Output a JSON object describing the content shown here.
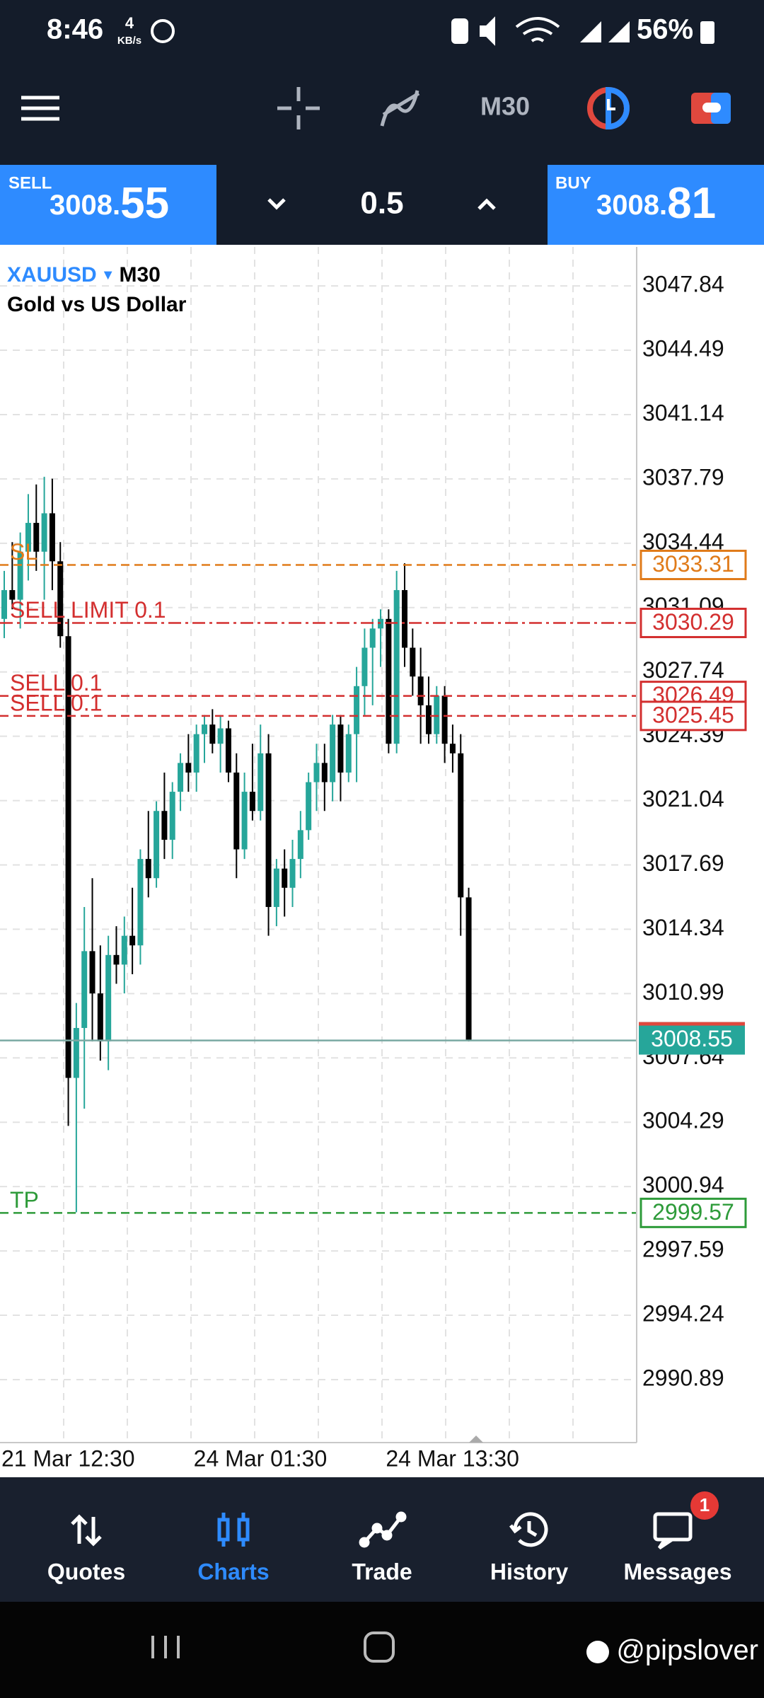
{
  "status_bar": {
    "time": "8:46",
    "net_speed": "4",
    "net_unit": "KB/s",
    "battery": "56%"
  },
  "toolbar": {
    "timeframe": "M30"
  },
  "trade_panel": {
    "sell_label": "SELL",
    "sell_price_main": "3008.",
    "sell_price_big": "55",
    "volume": "0.5",
    "buy_label": "BUY",
    "buy_price_main": "3008.",
    "buy_price_big": "81"
  },
  "chart_data": {
    "type": "candlestick",
    "symbol": "XAUUSD",
    "timeframe": "M30",
    "description": "Gold vs US Dollar",
    "categories": [
      "21 Mar 12:30",
      null,
      null,
      null,
      null,
      null,
      null,
      null,
      null,
      null,
      null,
      null,
      null,
      null,
      null,
      null,
      null,
      null,
      null,
      null,
      null,
      null,
      null,
      null,
      "24 Mar 01:30",
      null,
      null,
      null,
      null,
      null,
      null,
      null,
      null,
      null,
      null,
      null,
      null,
      null,
      null,
      null,
      null,
      null,
      null,
      null,
      null,
      null,
      null,
      null,
      "24 Mar 13:30",
      null,
      null,
      null,
      null,
      null,
      null,
      null,
      null,
      null,
      null
    ],
    "open": [
      3030.5,
      3032.0,
      3031.5,
      3034.0,
      3035.5,
      3034.0,
      3036.0,
      3033.5,
      3029.6,
      3006.6,
      3009.2,
      3013.2,
      3011.0,
      3008.5,
      3013.0,
      3012.5,
      3014.0,
      3013.5,
      3018.0,
      3017.0,
      3020.5,
      3019.0,
      3021.5,
      3023.0,
      3022.5,
      3024.5,
      3025.0,
      3024.0,
      3024.8,
      3022.5,
      3018.5,
      3021.5,
      3020.5,
      3023.5,
      3015.5,
      3017.5,
      3016.5,
      3018.0,
      3019.5,
      3022.0,
      3023.0,
      3022.0,
      3025.0,
      3022.5,
      3024.5,
      3027.0,
      3029.0,
      3030.0,
      3030.5,
      3024.0,
      3032.0,
      3029.0,
      3027.5,
      3026.0,
      3024.5,
      3026.5,
      3024.0,
      3023.5,
      3016.0
    ],
    "high": [
      3033.0,
      3034.5,
      3035.0,
      3037.0,
      3037.5,
      3037.9,
      3037.8,
      3034.5,
      3030.5,
      3010.5,
      3015.5,
      3017.0,
      3013.5,
      3014.0,
      3014.5,
      3015.0,
      3016.5,
      3018.5,
      3020.5,
      3021.0,
      3022.5,
      3022.0,
      3023.5,
      3024.5,
      3025.0,
      3025.5,
      3025.8,
      3025.5,
      3025.2,
      3023.5,
      3022.5,
      3024.0,
      3025.0,
      3024.5,
      3018.0,
      3018.5,
      3019.0,
      3020.5,
      3022.5,
      3024.0,
      3024.0,
      3025.5,
      3025.5,
      3025.0,
      3028.0,
      3030.0,
      3030.5,
      3031.0,
      3031.0,
      3033.0,
      3033.4,
      3030.0,
      3029.0,
      3027.5,
      3027.0,
      3027.0,
      3025.0,
      3024.5,
      3016.5
    ],
    "low": [
      3029.5,
      3031.0,
      3030.0,
      3032.5,
      3033.0,
      3031.5,
      3032.0,
      3029.0,
      3004.1,
      2999.6,
      3005.0,
      3008.5,
      3007.5,
      3007.0,
      3011.5,
      3011.0,
      3012.0,
      3012.5,
      3016.0,
      3016.5,
      3018.0,
      3018.0,
      3020.5,
      3021.5,
      3021.5,
      3023.0,
      3023.5,
      3022.5,
      3022.0,
      3017.0,
      3018.0,
      3020.0,
      3020.0,
      3014.0,
      3014.5,
      3015.0,
      3015.5,
      3017.0,
      3019.0,
      3020.5,
      3020.5,
      3021.0,
      3021.0,
      3022.0,
      3022.0,
      3025.5,
      3026.0,
      3028.0,
      3023.5,
      3023.5,
      3028.0,
      3026.5,
      3024.0,
      3024.0,
      3024.0,
      3023.0,
      3022.5,
      3014.0,
      3008.5
    ],
    "close": [
      3032.0,
      3031.5,
      3034.0,
      3035.5,
      3034.0,
      3036.0,
      3033.5,
      3029.6,
      3006.6,
      3009.2,
      3013.2,
      3011.0,
      3008.5,
      3013.0,
      3012.5,
      3014.0,
      3013.5,
      3018.0,
      3017.0,
      3020.5,
      3019.0,
      3021.5,
      3023.0,
      3022.5,
      3024.5,
      3025.0,
      3024.0,
      3024.8,
      3022.5,
      3018.5,
      3021.5,
      3020.5,
      3023.5,
      3015.5,
      3017.5,
      3016.5,
      3018.0,
      3019.5,
      3022.0,
      3023.0,
      3022.0,
      3025.0,
      3022.5,
      3024.5,
      3027.0,
      3029.0,
      3030.0,
      3030.5,
      3024.0,
      3032.0,
      3029.0,
      3027.5,
      3026.0,
      3024.5,
      3026.5,
      3024.0,
      3023.5,
      3016.0,
      3008.55
    ],
    "up_color": "#26a69a",
    "down_color": "#000000",
    "ylim": [
      2987.61,
      3049.87
    ],
    "yticks": [
      3047.84,
      3044.49,
      3041.14,
      3037.79,
      3034.44,
      3031.09,
      3027.74,
      3024.39,
      3021.04,
      3017.69,
      3014.34,
      3010.99,
      3007.64,
      3004.29,
      3000.94,
      2997.59,
      2994.24,
      2990.89
    ],
    "grid": true,
    "levels": [
      {
        "label": "SL",
        "value": 3033.31,
        "color": "#e07b1a",
        "style": "dashed"
      },
      {
        "label": "SELL LIMIT 0.1",
        "value": 3030.29,
        "color": "#d32f2f",
        "style": "dash-dot"
      },
      {
        "label": "SELL 0.1",
        "value": 3026.49,
        "color": "#d32f2f",
        "style": "dashed"
      },
      {
        "label": "SELL 0.1",
        "value": 3025.45,
        "color": "#d32f2f",
        "style": "dashed"
      },
      {
        "label": "TP",
        "value": 2999.57,
        "color": "#2e9b3a",
        "style": "dashed"
      }
    ],
    "bid": 3008.55,
    "bid_color": "#26a69a"
  },
  "nav": {
    "items": [
      "Quotes",
      "Charts",
      "Trade",
      "History",
      "Messages"
    ],
    "messages_badge": "1"
  },
  "watermark": "@pipslover"
}
